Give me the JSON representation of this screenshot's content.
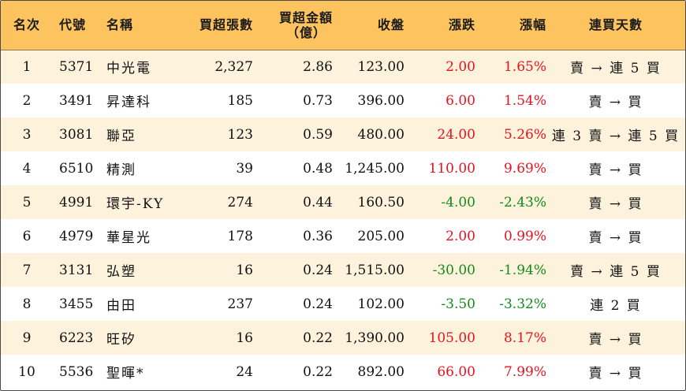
{
  "colors": {
    "header_bg": "#fcc35f",
    "row_stripe": "#fdf3dd",
    "up": "#e8121f",
    "down": "#138a1a"
  },
  "headers": {
    "rank": "名次",
    "code": "代號",
    "name": "名稱",
    "buy_sheets": "買超張數",
    "buy_amount_line1": "買超金額",
    "buy_amount_line2": "（億）",
    "close": "收盤",
    "change": "漲跌",
    "change_pct": "漲幅",
    "streak": "連買天數"
  },
  "rows": [
    {
      "rank": "1",
      "code": "5371",
      "name": "中光電",
      "buy_sheets": "2,327",
      "buy_amount": "2.86",
      "close": "123.00",
      "change": "2.00",
      "change_pct": "1.65%",
      "direction": "up",
      "streak": "賣 → 連 5 買"
    },
    {
      "rank": "2",
      "code": "3491",
      "name": "昇達科",
      "buy_sheets": "185",
      "buy_amount": "0.73",
      "close": "396.00",
      "change": "6.00",
      "change_pct": "1.54%",
      "direction": "up",
      "streak": "賣 → 買"
    },
    {
      "rank": "3",
      "code": "3081",
      "name": "聯亞",
      "buy_sheets": "123",
      "buy_amount": "0.59",
      "close": "480.00",
      "change": "24.00",
      "change_pct": "5.26%",
      "direction": "up",
      "streak": "連 3 賣 → 連 5 買"
    },
    {
      "rank": "4",
      "code": "6510",
      "name": "精測",
      "buy_sheets": "39",
      "buy_amount": "0.48",
      "close": "1,245.00",
      "change": "110.00",
      "change_pct": "9.69%",
      "direction": "up",
      "streak": "賣 → 買"
    },
    {
      "rank": "5",
      "code": "4991",
      "name": "環宇-KY",
      "buy_sheets": "274",
      "buy_amount": "0.44",
      "close": "160.50",
      "change": "-4.00",
      "change_pct": "-2.43%",
      "direction": "down",
      "streak": "賣 → 買"
    },
    {
      "rank": "6",
      "code": "4979",
      "name": "華星光",
      "buy_sheets": "178",
      "buy_amount": "0.36",
      "close": "205.00",
      "change": "2.00",
      "change_pct": "0.99%",
      "direction": "up",
      "streak": "賣 → 買"
    },
    {
      "rank": "7",
      "code": "3131",
      "name": "弘塑",
      "buy_sheets": "16",
      "buy_amount": "0.24",
      "close": "1,515.00",
      "change": "-30.00",
      "change_pct": "-1.94%",
      "direction": "down",
      "streak": "賣 → 連 5 買"
    },
    {
      "rank": "8",
      "code": "3455",
      "name": "由田",
      "buy_sheets": "237",
      "buy_amount": "0.24",
      "close": "102.00",
      "change": "-3.50",
      "change_pct": "-3.32%",
      "direction": "down",
      "streak": "連 2 買"
    },
    {
      "rank": "9",
      "code": "6223",
      "name": "旺矽",
      "buy_sheets": "16",
      "buy_amount": "0.22",
      "close": "1,390.00",
      "change": "105.00",
      "change_pct": "8.17%",
      "direction": "up",
      "streak": "賣 → 買"
    },
    {
      "rank": "10",
      "code": "5536",
      "name": "聖暉*",
      "buy_sheets": "24",
      "buy_amount": "0.22",
      "close": "892.00",
      "change": "66.00",
      "change_pct": "7.99%",
      "direction": "up",
      "streak": "賣 → 買"
    }
  ]
}
